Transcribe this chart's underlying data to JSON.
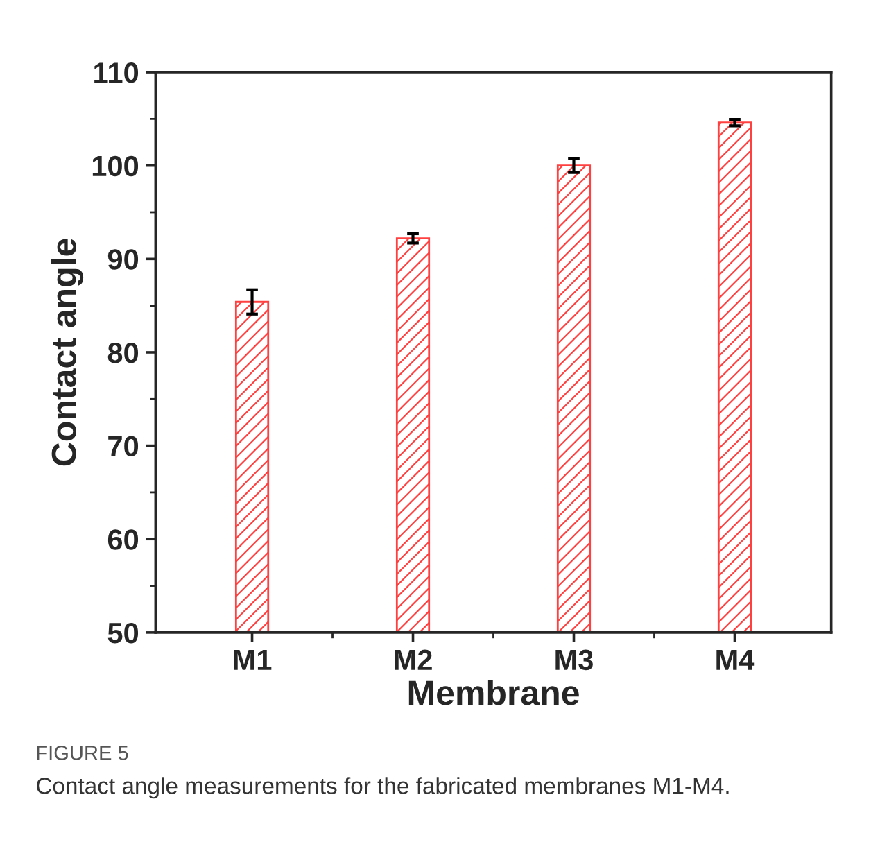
{
  "chart_data": {
    "type": "bar",
    "xlabel": "Membrane",
    "ylabel": "Contact angle",
    "categories": [
      "M1",
      "M2",
      "M3",
      "M4"
    ],
    "series": [
      {
        "color": "#ff4040",
        "values": [
          85.4,
          92.2,
          100.0,
          104.6
        ],
        "errors": [
          1.3,
          0.5,
          0.75,
          0.35
        ]
      }
    ],
    "ylim": [
      50,
      110
    ],
    "yticks": [
      50,
      60,
      70,
      80,
      90,
      100,
      110
    ],
    "grid": false,
    "legend": false,
    "annotations": [
      "FIGURE 5",
      "Contact angle measurements for the fabricated membranes M1-M4."
    ]
  }
}
